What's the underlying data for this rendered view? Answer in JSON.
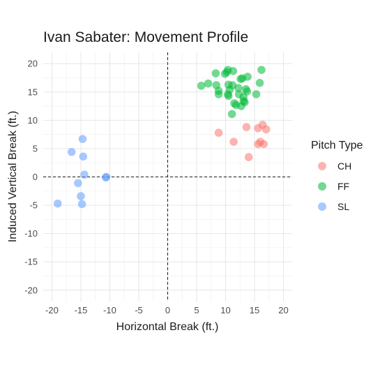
{
  "chart_data": {
    "type": "scatter",
    "title": "Ivan Sabater: Movement Profile",
    "xlabel": "Horizontal Break (ft.)",
    "ylabel": "Induced Vertical Break (ft.)",
    "xlim": [
      -21.5,
      21.5
    ],
    "ylim": [
      -22,
      22
    ],
    "x_ticks": [
      -20,
      -15,
      -10,
      -5,
      0,
      5,
      10,
      15,
      20
    ],
    "y_ticks": [
      -20,
      -15,
      -10,
      -5,
      0,
      5,
      10,
      15,
      20
    ],
    "reference_lines": {
      "x": 0,
      "y": 0,
      "style": "dashed"
    },
    "grid": true,
    "legend": {
      "title": "Pitch Type",
      "position": "right"
    },
    "series": [
      {
        "name": "CH",
        "color": "#F8766D",
        "points": [
          [
            8.8,
            7.8
          ],
          [
            11.4,
            6.2
          ],
          [
            13.6,
            8.8
          ],
          [
            14.0,
            3.5
          ],
          [
            15.6,
            8.6
          ],
          [
            15.6,
            5.8
          ],
          [
            16.0,
            6.2
          ],
          [
            16.6,
            5.8
          ],
          [
            16.4,
            9.2
          ],
          [
            17.0,
            8.4
          ]
        ]
      },
      {
        "name": "FF",
        "color": "#00BA38",
        "points": [
          [
            5.8,
            16.1
          ],
          [
            7.0,
            16.5
          ],
          [
            8.3,
            18.3
          ],
          [
            8.4,
            16.2
          ],
          [
            8.8,
            15.2
          ],
          [
            8.8,
            14.6
          ],
          [
            9.9,
            18.2
          ],
          [
            10.2,
            18.5
          ],
          [
            10.4,
            18.9
          ],
          [
            10.4,
            14.6
          ],
          [
            10.5,
            14.3
          ],
          [
            10.5,
            16.3
          ],
          [
            10.7,
            15.4
          ],
          [
            11.1,
            11.1
          ],
          [
            11.2,
            16.2
          ],
          [
            11.3,
            18.7
          ],
          [
            11.5,
            13.0
          ],
          [
            11.8,
            12.7
          ],
          [
            12.2,
            15.7
          ],
          [
            12.3,
            14.6
          ],
          [
            12.6,
            17.3
          ],
          [
            12.7,
            12.5
          ],
          [
            12.9,
            17.4
          ],
          [
            13.1,
            13.4
          ],
          [
            13.1,
            14.1
          ],
          [
            13.3,
            13.2
          ],
          [
            13.5,
            15.5
          ],
          [
            13.7,
            15.1
          ],
          [
            13.8,
            17.7
          ],
          [
            15.3,
            14.6
          ],
          [
            15.9,
            16.6
          ],
          [
            16.2,
            18.9
          ]
        ]
      },
      {
        "name": "SL",
        "color": "#619CFF",
        "points": [
          [
            -19.0,
            -4.7
          ],
          [
            -16.6,
            4.4
          ],
          [
            -15.5,
            -1.1
          ],
          [
            -15.0,
            -3.4
          ],
          [
            -14.8,
            -4.8
          ],
          [
            -14.7,
            6.7
          ],
          [
            -14.6,
            3.6
          ],
          [
            -14.4,
            0.4
          ],
          [
            -10.6,
            0.0
          ],
          [
            -10.7,
            -0.1
          ]
        ]
      }
    ]
  }
}
